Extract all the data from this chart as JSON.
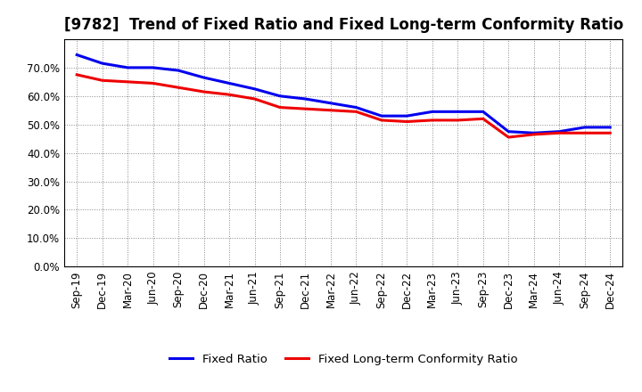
{
  "title": "[9782]  Trend of Fixed Ratio and Fixed Long-term Conformity Ratio",
  "x_labels": [
    "Sep-19",
    "Dec-19",
    "Mar-20",
    "Jun-20",
    "Sep-20",
    "Dec-20",
    "Mar-21",
    "Jun-21",
    "Sep-21",
    "Dec-21",
    "Mar-22",
    "Jun-22",
    "Sep-22",
    "Dec-22",
    "Mar-23",
    "Jun-23",
    "Sep-23",
    "Dec-23",
    "Mar-24",
    "Jun-24",
    "Sep-24",
    "Dec-24"
  ],
  "fixed_ratio": [
    0.745,
    0.715,
    0.7,
    0.7,
    0.69,
    0.665,
    0.645,
    0.625,
    0.6,
    0.59,
    0.575,
    0.56,
    0.53,
    0.53,
    0.545,
    0.545,
    0.545,
    0.475,
    0.47,
    0.475,
    0.49,
    0.49
  ],
  "fixed_lt_ratio": [
    0.675,
    0.655,
    0.65,
    0.645,
    0.63,
    0.615,
    0.605,
    0.59,
    0.56,
    0.555,
    0.55,
    0.545,
    0.515,
    0.51,
    0.515,
    0.515,
    0.52,
    0.455,
    0.465,
    0.47,
    0.47,
    0.47
  ],
  "fixed_ratio_color": "#0000EE",
  "fixed_lt_ratio_color": "#EE0000",
  "background_color": "#FFFFFF",
  "plot_bg_color": "#FFFFFF",
  "grid_color": "#AAAAAA",
  "ylim": [
    0.0,
    0.8
  ],
  "yticks": [
    0.0,
    0.1,
    0.2,
    0.3,
    0.4,
    0.5,
    0.6,
    0.7
  ],
  "legend_fixed_ratio": "Fixed Ratio",
  "legend_fixed_lt_ratio": "Fixed Long-term Conformity Ratio",
  "line_width": 2.2,
  "title_fontsize": 12,
  "tick_fontsize": 8.5,
  "legend_fontsize": 9.5
}
